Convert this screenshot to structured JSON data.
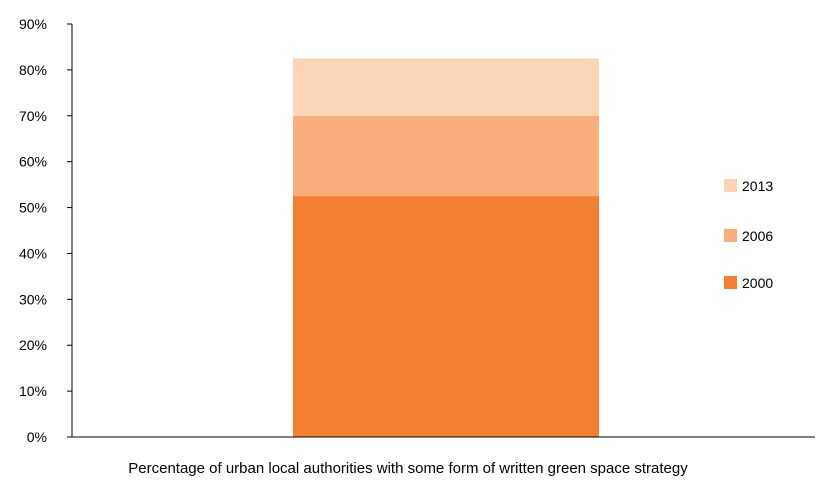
{
  "chart_data": {
    "type": "bar",
    "stacked": true,
    "categories": [
      "Percentage of urban local authorities with some form of written green space strategy"
    ],
    "series": [
      {
        "name": "2000",
        "values": [
          52.5
        ],
        "color": "#f47f31"
      },
      {
        "name": "2006",
        "values": [
          17.5
        ],
        "color": "#f9ad7c"
      },
      {
        "name": "2013",
        "values": [
          12.5
        ],
        "color": "#fcd5b6"
      }
    ],
    "y_ticks": [
      "0%",
      "10%",
      "20%",
      "30%",
      "40%",
      "50%",
      "60%",
      "70%",
      "80%",
      "90%"
    ],
    "ylim": [
      0,
      90
    ],
    "legend_order": [
      "2013",
      "2006",
      "2000"
    ],
    "legend_position": "right",
    "grid": false,
    "title": "",
    "xlabel": "",
    "ylabel": ""
  }
}
